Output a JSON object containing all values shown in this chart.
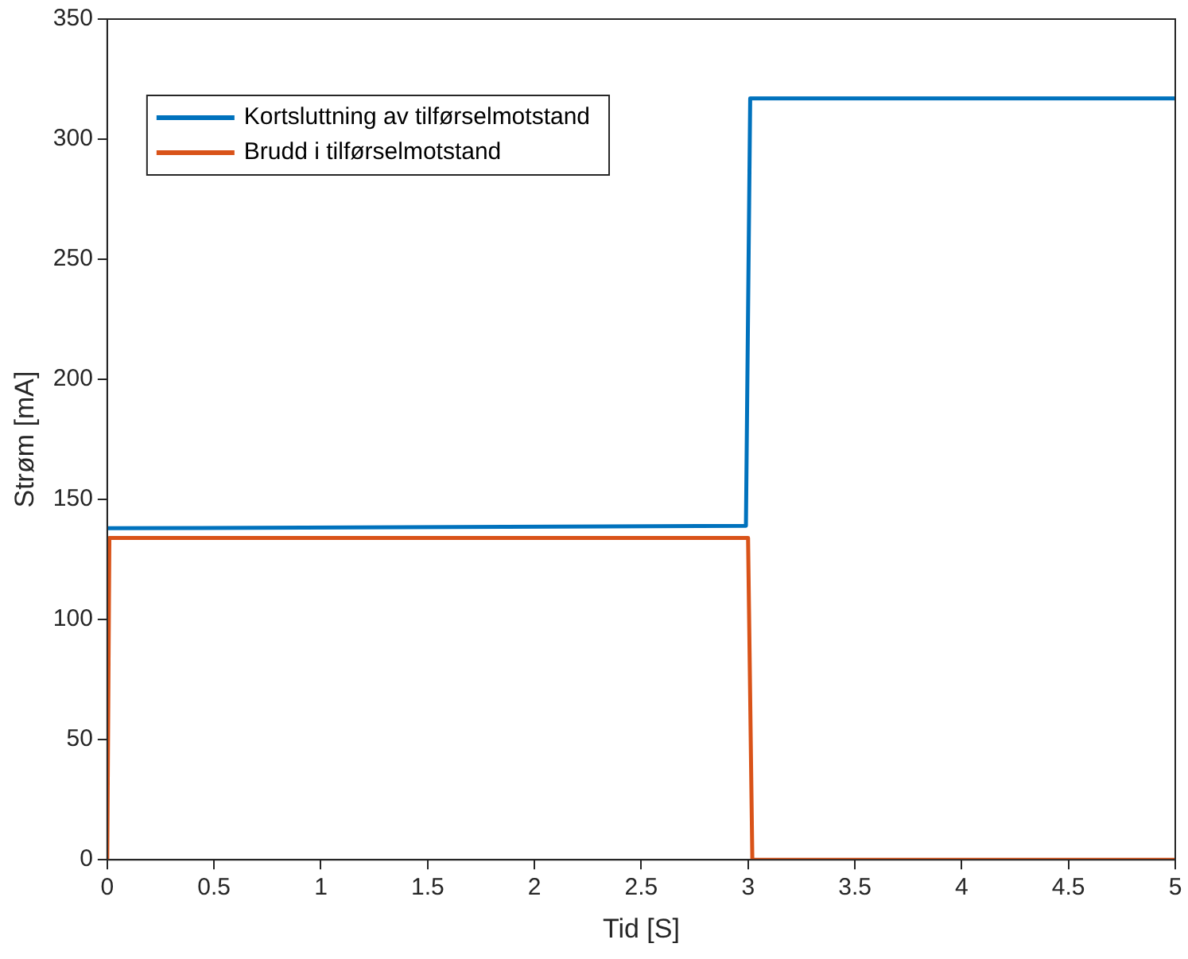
{
  "chart_data": {
    "type": "line",
    "xlabel": "Tid [S]",
    "ylabel": "Strøm [mA]",
    "xlim": [
      0,
      5
    ],
    "xticks": [
      0,
      0.5,
      1,
      1.5,
      2,
      2.5,
      3,
      3.5,
      4,
      4.5,
      5
    ],
    "ylim": [
      0,
      350
    ],
    "yticks": [
      0,
      50,
      100,
      150,
      200,
      250,
      300,
      350
    ],
    "grid": false,
    "legend": "top left",
    "line_style": "solid",
    "marker": "none",
    "series": [
      {
        "name": "Kortsluttning av tilførselmotstand",
        "color": "#0072bd",
        "x": [
          0,
          2.99,
          3.01,
          5
        ],
        "values": [
          138,
          139,
          317,
          317
        ]
      },
      {
        "name": "Brudd i tilførselmotstand",
        "color": "#d95319",
        "x": [
          0,
          0.01,
          3.0,
          3.02,
          5
        ],
        "values": [
          0,
          134,
          134,
          0,
          0
        ]
      }
    ]
  }
}
